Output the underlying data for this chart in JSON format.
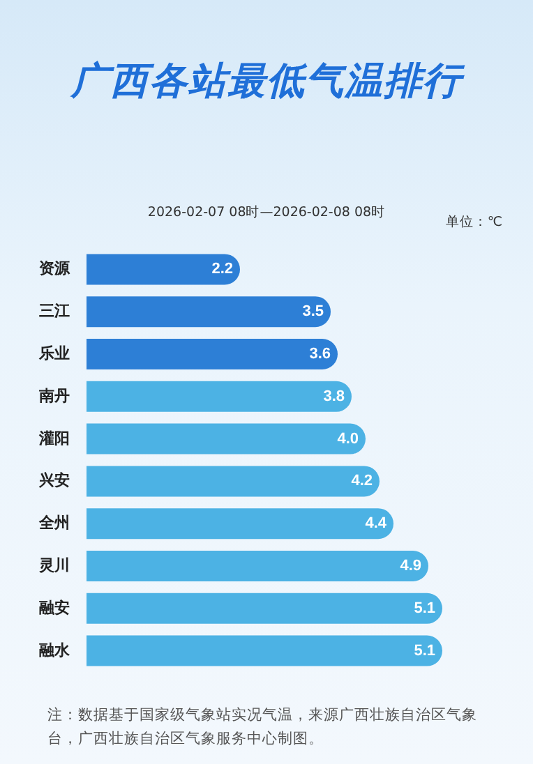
{
  "chart_data": {
    "type": "bar",
    "orientation": "horizontal",
    "title": "广西各站最低气温排行",
    "subtitle": "2026-02-07 08时—2026-02-08 08时",
    "xlabel": "单位：℃",
    "categories": [
      "资源",
      "三江",
      "乐业",
      "南丹",
      "灌阳",
      "兴安",
      "全州",
      "灵川",
      "融安",
      "融水"
    ],
    "values": [
      2.2,
      3.5,
      3.6,
      3.8,
      4.0,
      4.2,
      4.4,
      4.9,
      5.1,
      5.1
    ],
    "value_labels": [
      "2.2",
      "3.5",
      "3.6",
      "3.8",
      "4.0",
      "4.2",
      "4.4",
      "4.9",
      "5.1",
      "5.1"
    ],
    "colors": [
      "#2d7fd6",
      "#2d7fd6",
      "#2d7fd6",
      "#4cb2e4",
      "#4cb2e4",
      "#4cb2e4",
      "#4cb2e4",
      "#4cb2e4",
      "#4cb2e4",
      "#4cb2e4"
    ],
    "annotations": [
      "注：数据基于国家级气象站实况气温，来源广西壮族自治区气象台，广西壮族自治区气象服务中心制图。"
    ]
  }
}
